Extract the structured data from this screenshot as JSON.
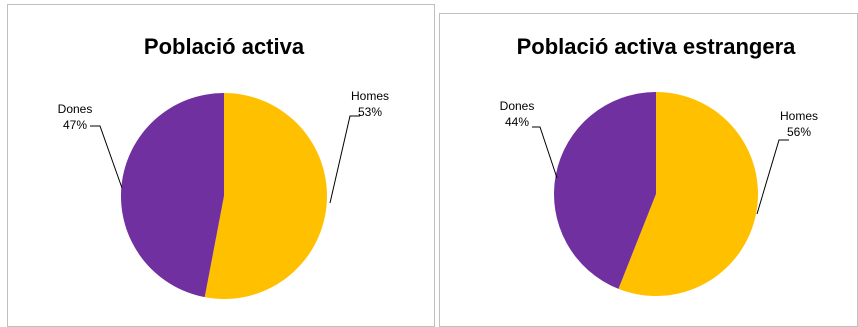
{
  "chart_data": [
    {
      "type": "pie",
      "title": "Població activa",
      "slices": [
        {
          "label": "Homes",
          "value": 53,
          "value_label": "53%",
          "color": "#FFC000"
        },
        {
          "label": "Dones",
          "value": 47,
          "value_label": "47%",
          "color": "#7030A0"
        }
      ]
    },
    {
      "type": "pie",
      "title": "Població activa estrangera",
      "slices": [
        {
          "label": "Homes",
          "value": 56,
          "value_label": "56%",
          "color": "#FFC000"
        },
        {
          "label": "Dones",
          "value": 44,
          "value_label": "44%",
          "color": "#7030A0"
        }
      ]
    }
  ]
}
